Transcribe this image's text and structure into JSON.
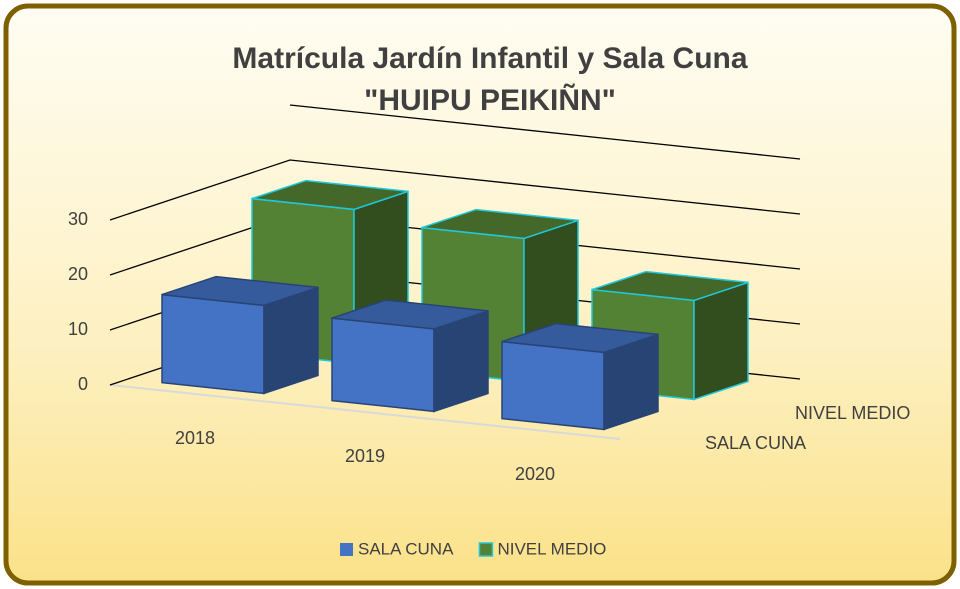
{
  "chart_data": {
    "type": "bar3d",
    "title": "Matrícula Jardín Infantil y Sala Cuna",
    "subtitle": "\"HUIPU PEIKIÑN\"",
    "categories": [
      "2018",
      "2019",
      "2020"
    ],
    "series": [
      {
        "name": "SALA CUNA",
        "color": "#4472c4",
        "values": [
          16,
          15,
          14
        ]
      },
      {
        "name": "NIVEL MEDIO",
        "color": "#548235",
        "values": [
          28,
          26,
          18
        ]
      }
    ],
    "ylim": [
      0,
      40
    ],
    "yticks": [
      0,
      10,
      20,
      30
    ],
    "grid": true,
    "legend": "bottom"
  }
}
